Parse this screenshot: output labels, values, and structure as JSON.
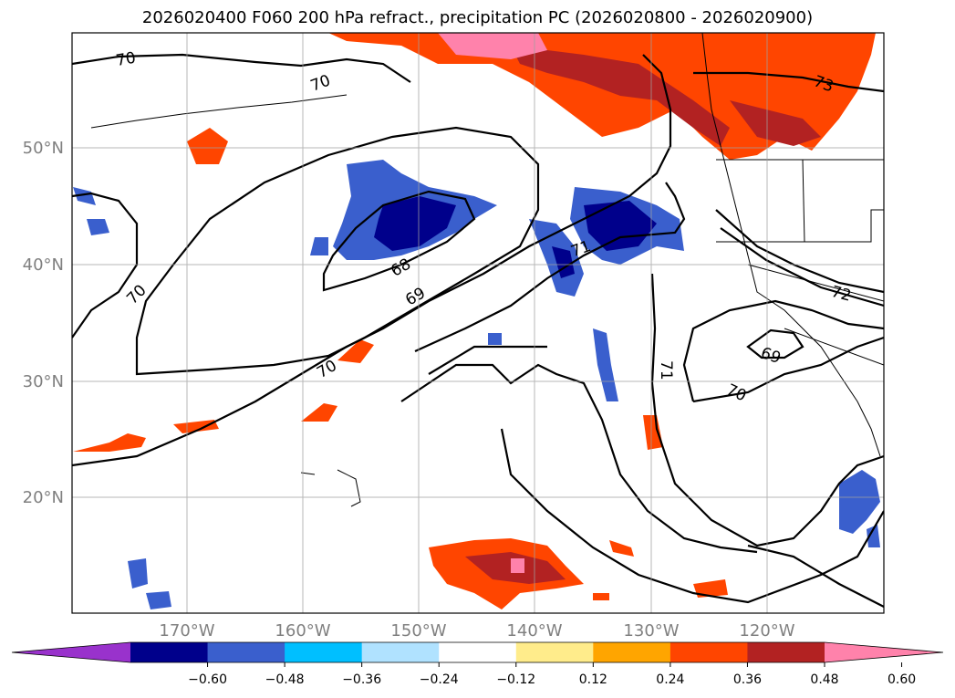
{
  "title": "2026020400 F060 200 hPa refract., precipitation PC (2026020800 - 2026020900)",
  "map": {
    "lon_labels": [
      "170°W",
      "160°W",
      "150°W",
      "140°W",
      "130°W",
      "120°W"
    ],
    "lat_labels": [
      "50°N",
      "40°N",
      "30°N",
      "20°N"
    ],
    "contour_labels": [
      "70",
      "70",
      "73",
      "68",
      "69",
      "70",
      "70",
      "71",
      "71",
      "72",
      "69",
      "70"
    ]
  },
  "colorbar": {
    "ticks": [
      "−0.60",
      "−0.48",
      "−0.36",
      "−0.24",
      "−0.12",
      "0.12",
      "0.24",
      "0.36",
      "0.48",
      "0.60"
    ],
    "colors": [
      "#9932cc",
      "#00008b",
      "#3a5fcd",
      "#00bfff",
      "#b0e2ff",
      "#ffffff",
      "#ffec8b",
      "#ffa500",
      "#ff4500",
      "#b22222",
      "#ff82ab"
    ]
  }
}
